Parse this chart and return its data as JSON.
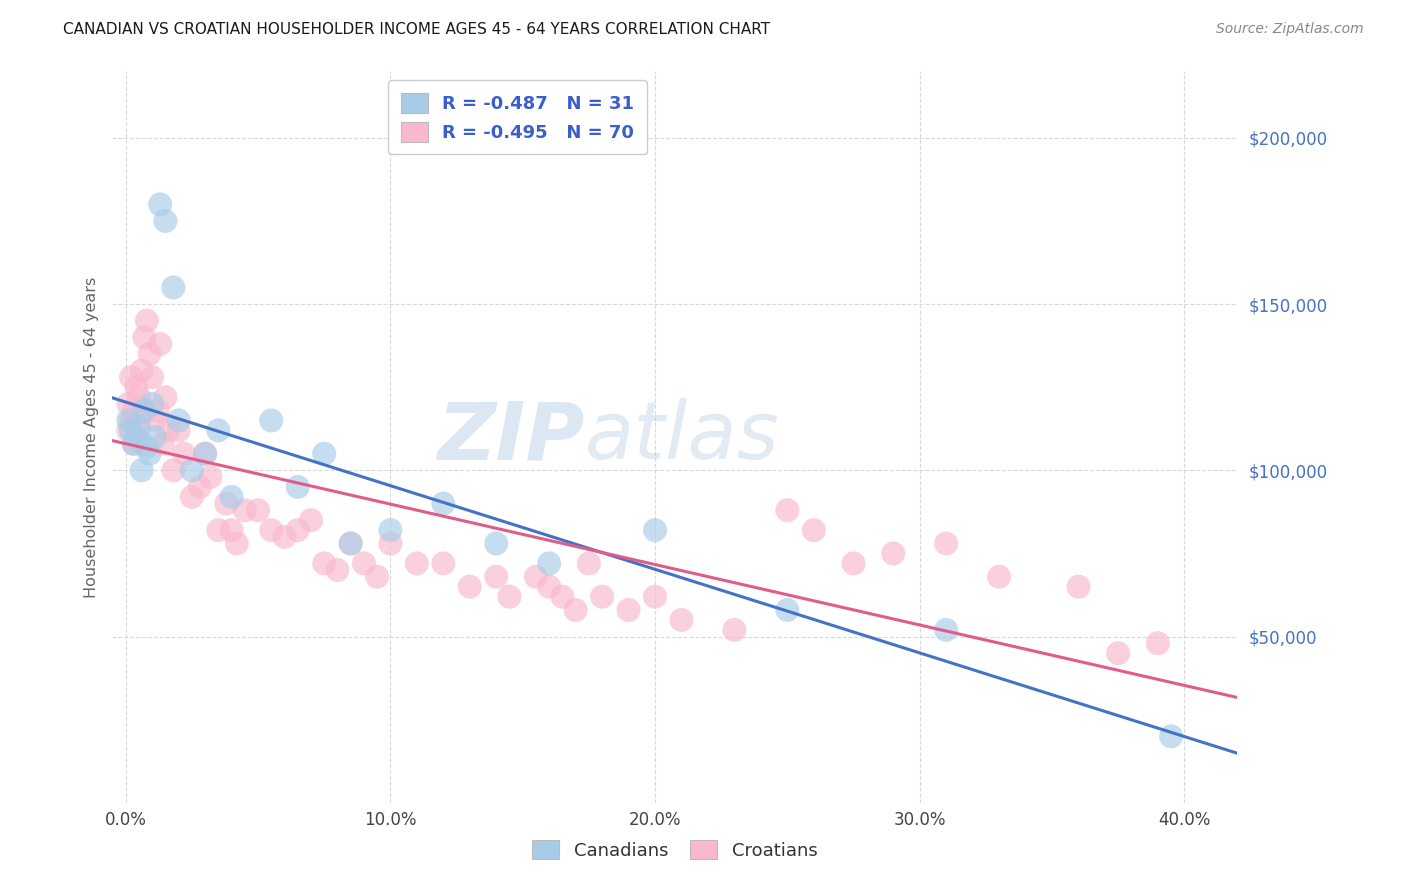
{
  "title": "CANADIAN VS CROATIAN HOUSEHOLDER INCOME AGES 45 - 64 YEARS CORRELATION CHART",
  "source": "Source: ZipAtlas.com",
  "ylabel": "Householder Income Ages 45 - 64 years",
  "xlabel_ticks": [
    "0.0%",
    "10.0%",
    "20.0%",
    "30.0%",
    "40.0%"
  ],
  "xlabel_vals": [
    0.0,
    0.1,
    0.2,
    0.3,
    0.4
  ],
  "ytick_labels": [
    "$50,000",
    "$100,000",
    "$150,000",
    "$200,000"
  ],
  "ytick_vals": [
    50000,
    100000,
    150000,
    200000
  ],
  "ylim": [
    0,
    220000
  ],
  "xlim": [
    -0.005,
    0.42
  ],
  "canadian_R": "-0.487",
  "canadian_N": "31",
  "croatian_R": "-0.495",
  "croatian_N": "70",
  "canadian_color": "#a8cce8",
  "croatian_color": "#f9b8cb",
  "canadian_line_color": "#4472c4",
  "croatian_line_color": "#e05c8a",
  "legend_text_color": "#3a5fcd",
  "watermark_zip": "ZIP",
  "watermark_atlas": "atlas",
  "background_color": "#ffffff",
  "grid_color": "#d9d9d9",
  "canadians_x": [
    0.001,
    0.002,
    0.003,
    0.004,
    0.005,
    0.006,
    0.007,
    0.008,
    0.009,
    0.01,
    0.011,
    0.013,
    0.015,
    0.018,
    0.02,
    0.025,
    0.03,
    0.035,
    0.04,
    0.055,
    0.065,
    0.075,
    0.085,
    0.1,
    0.12,
    0.14,
    0.16,
    0.2,
    0.25,
    0.31,
    0.395
  ],
  "canadians_y": [
    115000,
    112000,
    108000,
    110000,
    113000,
    100000,
    118000,
    107000,
    105000,
    120000,
    110000,
    180000,
    175000,
    155000,
    115000,
    100000,
    105000,
    112000,
    92000,
    115000,
    95000,
    105000,
    78000,
    82000,
    90000,
    78000,
    72000,
    82000,
    58000,
    52000,
    20000
  ],
  "croatians_x": [
    0.001,
    0.001,
    0.002,
    0.002,
    0.003,
    0.003,
    0.004,
    0.004,
    0.005,
    0.005,
    0.006,
    0.006,
    0.007,
    0.007,
    0.008,
    0.009,
    0.01,
    0.011,
    0.012,
    0.013,
    0.014,
    0.015,
    0.016,
    0.018,
    0.02,
    0.022,
    0.025,
    0.028,
    0.03,
    0.032,
    0.035,
    0.038,
    0.04,
    0.042,
    0.045,
    0.05,
    0.055,
    0.06,
    0.065,
    0.07,
    0.075,
    0.08,
    0.085,
    0.09,
    0.095,
    0.1,
    0.11,
    0.12,
    0.13,
    0.14,
    0.145,
    0.155,
    0.16,
    0.165,
    0.17,
    0.175,
    0.18,
    0.19,
    0.2,
    0.21,
    0.23,
    0.25,
    0.26,
    0.275,
    0.29,
    0.31,
    0.33,
    0.36,
    0.375,
    0.39
  ],
  "croatians_y": [
    120000,
    112000,
    128000,
    115000,
    118000,
    108000,
    125000,
    110000,
    122000,
    115000,
    130000,
    108000,
    140000,
    118000,
    145000,
    135000,
    128000,
    115000,
    118000,
    138000,
    108000,
    122000,
    112000,
    100000,
    112000,
    105000,
    92000,
    95000,
    105000,
    98000,
    82000,
    90000,
    82000,
    78000,
    88000,
    88000,
    82000,
    80000,
    82000,
    85000,
    72000,
    70000,
    78000,
    72000,
    68000,
    78000,
    72000,
    72000,
    65000,
    68000,
    62000,
    68000,
    65000,
    62000,
    58000,
    72000,
    62000,
    58000,
    62000,
    55000,
    52000,
    88000,
    82000,
    72000,
    75000,
    78000,
    68000,
    65000,
    45000,
    48000
  ]
}
